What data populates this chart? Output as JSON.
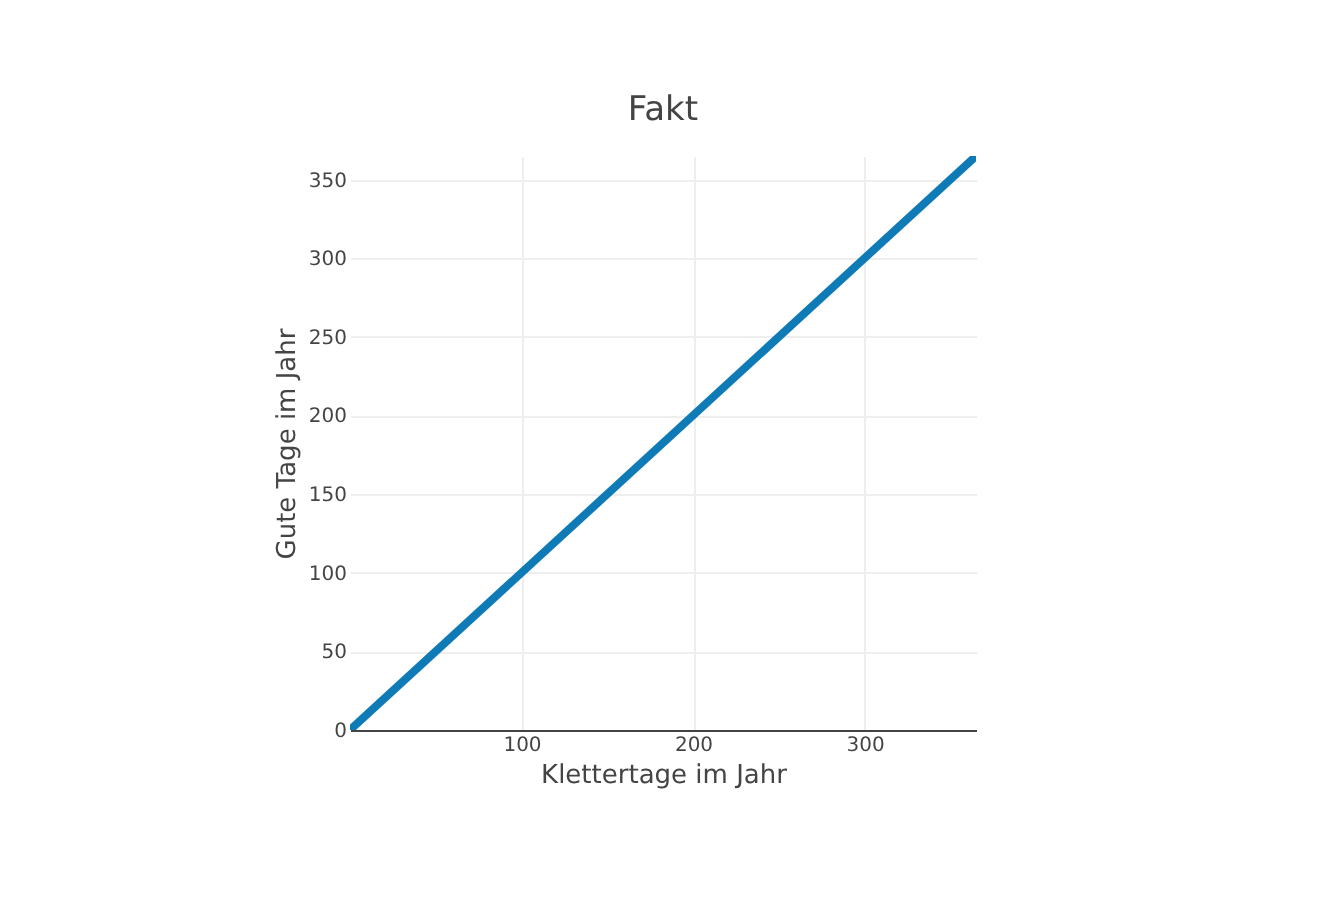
{
  "chart_data": {
    "type": "line",
    "title": "Fakt",
    "xlabel": "Klettertage im Jahr",
    "ylabel": "Gute Tage im Jahr",
    "x": [
      0,
      365
    ],
    "series": [
      {
        "color": "#0f7bb6",
        "values": [
          0,
          365
        ]
      }
    ],
    "xlim": [
      0,
      365
    ],
    "xticks": [
      100,
      200,
      300
    ],
    "ylim": [
      0,
      365
    ],
    "yticks": [
      0,
      50,
      100,
      150,
      200,
      250,
      300,
      350
    ],
    "grid": true,
    "line_style": "solid"
  }
}
